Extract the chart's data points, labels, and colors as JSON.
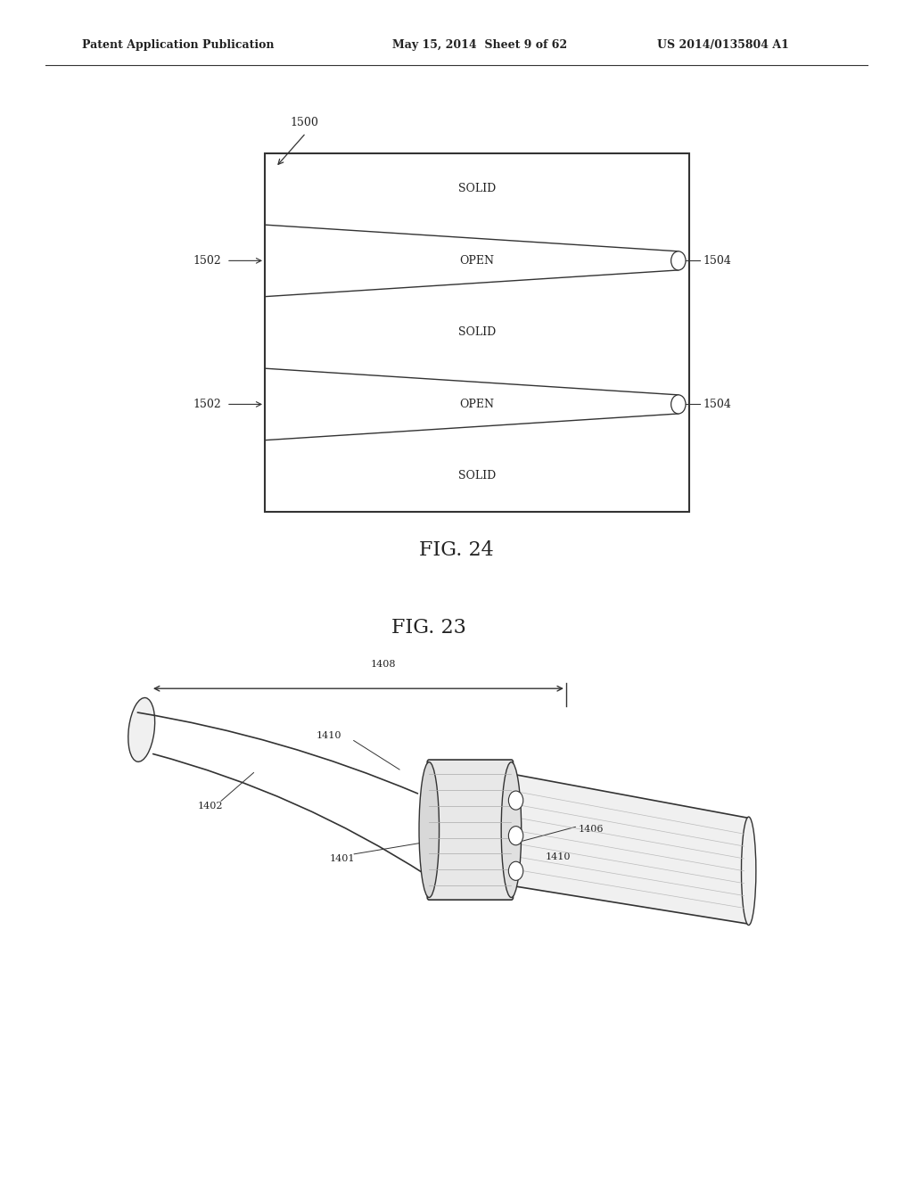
{
  "header_left": "Patent Application Publication",
  "header_mid": "May 15, 2014  Sheet 9 of 62",
  "header_right": "US 2014/0135804 A1",
  "fig23_label": "FIG. 23",
  "fig24_label": "FIG. 24",
  "bg_color": "#ffffff",
  "line_color": "#333333",
  "label_color": "#222222"
}
